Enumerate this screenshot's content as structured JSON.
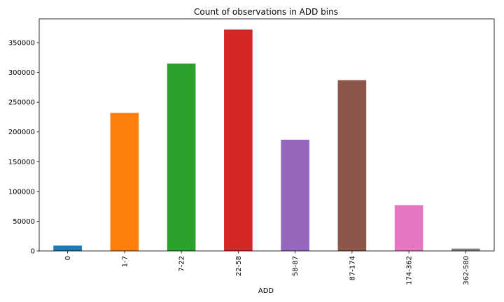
{
  "chart_data": {
    "type": "bar",
    "title": "Count of observations in ADD bins",
    "xlabel": "ADD",
    "ylabel": "",
    "categories": [
      "0",
      "1-7",
      "7-22",
      "22-58",
      "58-87",
      "87-174",
      "174-362",
      "362-580"
    ],
    "values": [
      9000,
      232000,
      315000,
      372000,
      187000,
      287000,
      77000,
      4000
    ],
    "ylim": [
      0,
      390000
    ],
    "yticks": [
      0,
      50000,
      100000,
      150000,
      200000,
      250000,
      300000,
      350000
    ],
    "grid": false,
    "legend": "none",
    "colors": [
      "#1f77b4",
      "#ff7f0e",
      "#2ca02c",
      "#d62728",
      "#9467bd",
      "#8c564b",
      "#e377c2",
      "#7f7f7f"
    ]
  }
}
